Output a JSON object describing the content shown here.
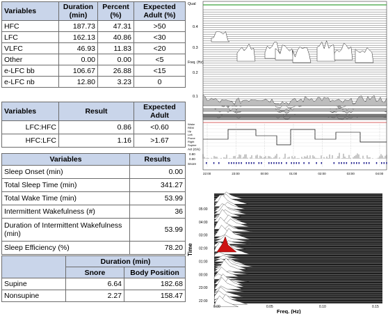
{
  "table1": {
    "headers": [
      "Variables",
      "Duration (min)",
      "Percent (%)",
      "Expected Adult (%)"
    ],
    "rows": [
      [
        "HFC",
        "187.73",
        "47.31",
        ">50"
      ],
      [
        "LFC",
        "162.13",
        "40.86",
        "<30"
      ],
      [
        "VLFC",
        "46.93",
        "11.83",
        "<20"
      ],
      [
        "Other",
        "0.00",
        "0.00",
        "<5"
      ],
      [
        "e-LFC bb",
        "106.67",
        "26.88",
        "<15"
      ],
      [
        "e-LFC nb",
        "12.80",
        "3.23",
        "0"
      ]
    ]
  },
  "table2": {
    "headers": [
      "Variables",
      "Result",
      "Expected Adult"
    ],
    "rows": [
      [
        "LFC:HFC",
        "0.86",
        "<0.60"
      ],
      [
        "HFC:LFC",
        "1.16",
        ">1.67"
      ]
    ]
  },
  "table3": {
    "headers": [
      "Variables",
      "Results"
    ],
    "rows": [
      [
        "Sleep Onset (min)",
        "0.00"
      ],
      [
        "Total Sleep Time (min)",
        "341.27"
      ],
      [
        "Total Wake Time (min)",
        "53.99"
      ],
      [
        "Intermittent Wakefulness (#)",
        "36"
      ],
      [
        "Duration of Intermittent Wakefulness (min)",
        "53.99"
      ],
      [
        "Sleep Efficiency (%)",
        "78.20"
      ]
    ]
  },
  "table4": {
    "group_header": "Duration (min)",
    "headers": [
      "Snore",
      "Body Position"
    ],
    "rows": [
      [
        "Supine",
        "6.64",
        "182.68"
      ],
      [
        "Nonsupine",
        "2.27",
        "158.47"
      ]
    ]
  },
  "top_chart": {
    "qual_label": "Qual",
    "freq_label": "Freq. (Hz)",
    "freq_ticks": [
      "0.4",
      "0.3",
      "0.2",
      "0.1"
    ],
    "stage_labels": [
      "Wake",
      "REM",
      "Up",
      "Left",
      "Prone",
      "Right",
      "Supine"
    ],
    "act_label": "Act (G/s)",
    "act_ticks": [
      "0.80",
      "0.00"
    ],
    "snore_label": "Snore",
    "time_ticks": [
      "22:00",
      "23:00",
      "00:00",
      "01:00",
      "02:00",
      "03:00",
      "04:00"
    ],
    "colors": {
      "qual_line": "#3aa23a",
      "spectrum_fill": "#ffffff",
      "spectrum_dark": "#444444",
      "snore": "#1a1a8c"
    }
  },
  "bottom_chart": {
    "ylabel": "Time",
    "xlabel": "Freq. (Hz)",
    "time_ticks": [
      "05:00",
      "04:00",
      "03:00",
      "02:00",
      "01:00",
      "00:00",
      "23:00",
      "22:00"
    ],
    "freq_ticks": [
      "0.00",
      "0.05",
      "0.10",
      "0.15"
    ],
    "colors": {
      "highlight": "#cc1111",
      "background": "#1a1a1a"
    }
  }
}
